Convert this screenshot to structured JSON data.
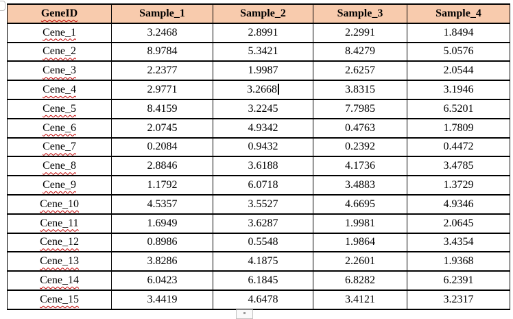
{
  "document": {
    "table": {
      "headers": [
        "GeneID",
        "Sample_1",
        "Sample_2",
        "Sample_3",
        "Sample_4"
      ],
      "rows": [
        {
          "gene": "Cene_1",
          "values": [
            "3.2468",
            "2.8991",
            "2.2991",
            "1.8494"
          ]
        },
        {
          "gene": "Cene_2",
          "values": [
            "8.9784",
            "5.3421",
            "8.4279",
            "5.0576"
          ]
        },
        {
          "gene": "Cene_3",
          "values": [
            "2.2377",
            "1.9987",
            "2.6257",
            "2.0544"
          ]
        },
        {
          "gene": "Cene_4",
          "values": [
            "2.9771",
            "3.2668",
            "3.8315",
            "3.1946"
          ]
        },
        {
          "gene": "Cene_5",
          "values": [
            "8.4159",
            "3.2245",
            "7.7985",
            "6.5201"
          ]
        },
        {
          "gene": "Cene_6",
          "values": [
            "2.0745",
            "4.9342",
            "0.4763",
            "1.7809"
          ]
        },
        {
          "gene": "Cene_7",
          "values": [
            "0.2084",
            "0.9432",
            "0.2392",
            "0.4472"
          ]
        },
        {
          "gene": "Cene_8",
          "values": [
            "2.8846",
            "3.6188",
            "4.1736",
            "3.4785"
          ]
        },
        {
          "gene": "Cene_9",
          "values": [
            "1.1792",
            "6.0718",
            "3.4883",
            "1.3729"
          ]
        },
        {
          "gene": "Cene_10",
          "values": [
            "4.5357",
            "3.5527",
            "4.6695",
            "4.9346"
          ]
        },
        {
          "gene": "Cene_11",
          "values": [
            "1.6949",
            "3.6287",
            "1.9981",
            "2.0645"
          ]
        },
        {
          "gene": "Cene_12",
          "values": [
            "0.8986",
            "0.5548",
            "1.9864",
            "3.4354"
          ]
        },
        {
          "gene": "Cene_13",
          "values": [
            "3.8286",
            "4.1875",
            "2.2601",
            "1.9368"
          ]
        },
        {
          "gene": "Cene_14",
          "values": [
            "6.0423",
            "6.1845",
            "6.8282",
            "6.2391"
          ]
        },
        {
          "gene": "Cene_15",
          "values": [
            "3.4419",
            "4.6478",
            "3.4121",
            "3.2317"
          ]
        }
      ]
    },
    "caret": {
      "row_index": 3,
      "value_index": 1,
      "row_gene": "Cene_4",
      "column": "Sample_2",
      "after_value": "3.2668"
    },
    "colors": {
      "header_bg": "#F8CBAD",
      "border": "#000000",
      "spellcheck_underline": "#C00000"
    }
  }
}
